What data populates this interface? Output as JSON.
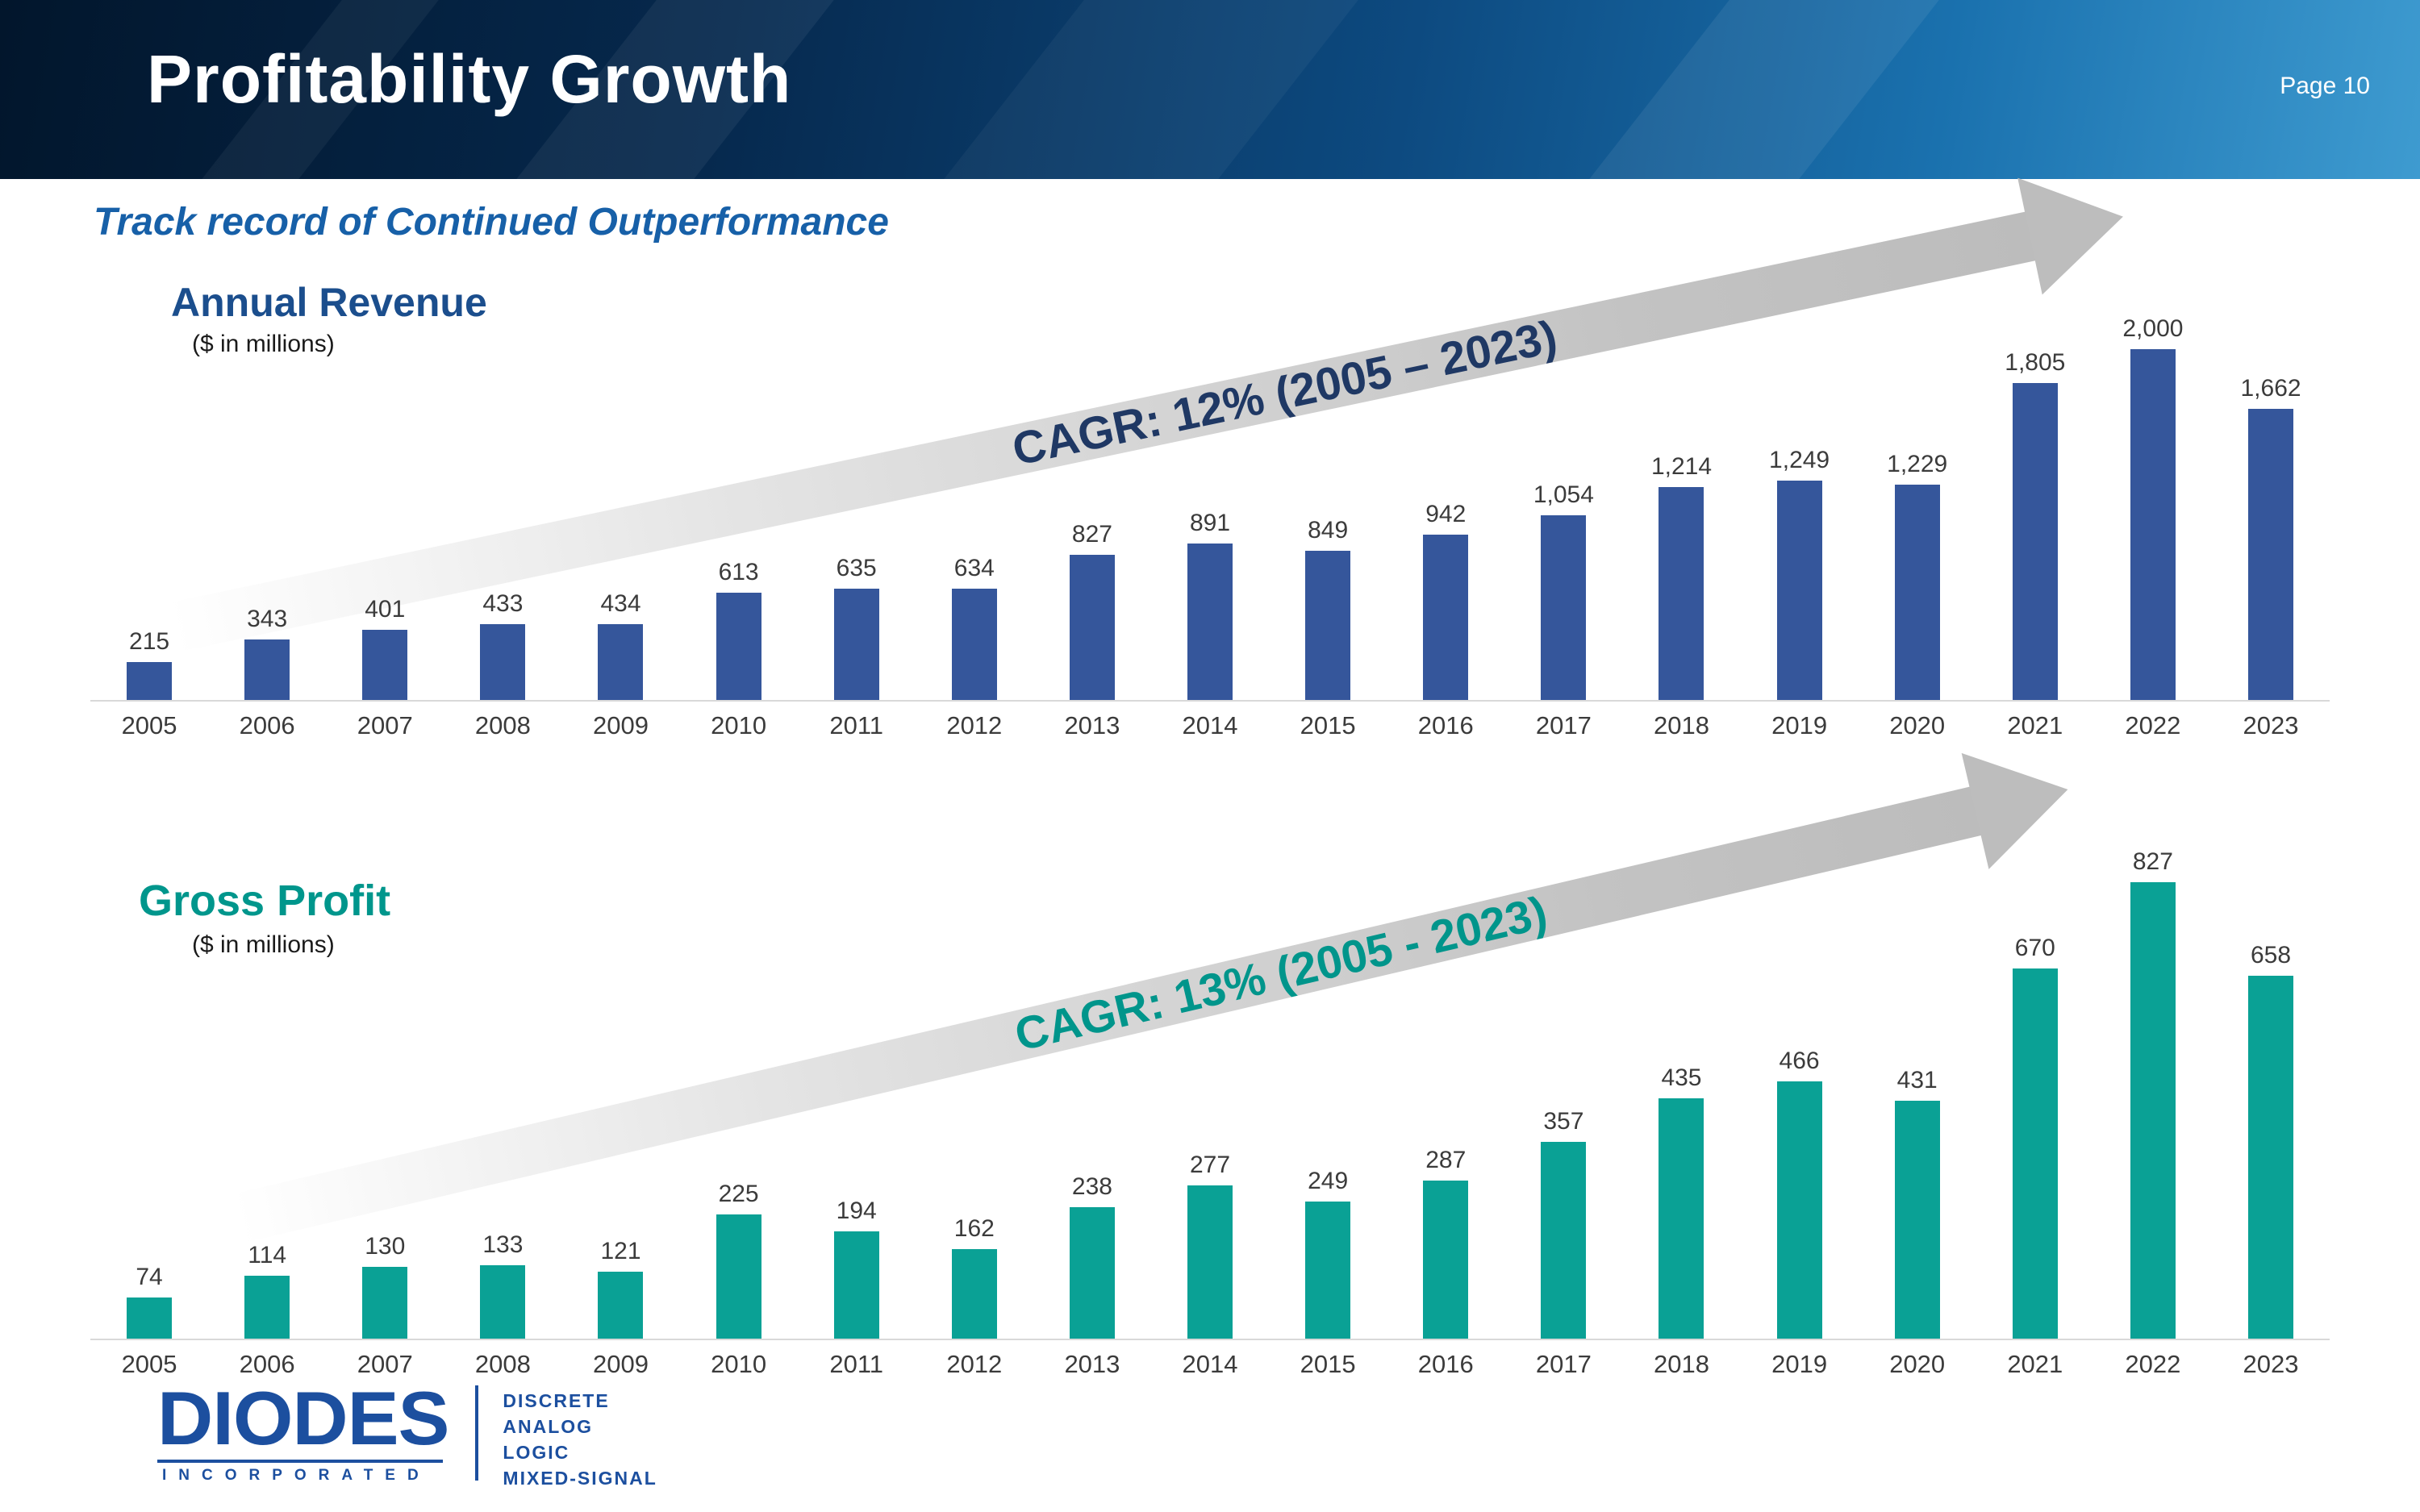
{
  "header": {
    "title": "Profitability Growth",
    "page_label": "Page 10"
  },
  "subtitle": "Track record of Continued Outperformance",
  "chart_data": [
    {
      "type": "bar",
      "title": "Annual Revenue",
      "units_label": "($ in millions)",
      "cagr_label": "CAGR: 12% (2005 – 2023)",
      "categories": [
        "2005",
        "2006",
        "2007",
        "2008",
        "2009",
        "2010",
        "2011",
        "2012",
        "2013",
        "2014",
        "2015",
        "2016",
        "2017",
        "2018",
        "2019",
        "2020",
        "2021",
        "2022",
        "2023"
      ],
      "values": [
        215,
        343,
        401,
        433,
        434,
        613,
        635,
        634,
        827,
        891,
        849,
        942,
        1054,
        1214,
        1249,
        1229,
        1805,
        2000,
        1662
      ],
      "xlabel": "",
      "ylabel": "",
      "ylim": [
        0,
        2000
      ],
      "grid": false,
      "legend": "none",
      "bar_color": "#35569B",
      "title_color": "#1B4E8D",
      "cagr_color": "#1F3864"
    },
    {
      "type": "bar",
      "title": "Gross Profit",
      "units_label": "($ in millions)",
      "cagr_label": "CAGR: 13% (2005 - 2023)",
      "categories": [
        "2005",
        "2006",
        "2007",
        "2008",
        "2009",
        "2010",
        "2011",
        "2012",
        "2013",
        "2014",
        "2015",
        "2016",
        "2017",
        "2018",
        "2019",
        "2020",
        "2021",
        "2022",
        "2023"
      ],
      "values": [
        74,
        114,
        130,
        133,
        121,
        225,
        194,
        162,
        238,
        277,
        249,
        287,
        357,
        435,
        466,
        431,
        670,
        827,
        658
      ],
      "xlabel": "",
      "ylabel": "",
      "ylim": [
        0,
        827
      ],
      "grid": false,
      "legend": "none",
      "bar_color": "#0AA195",
      "title_color": "#00968C",
      "cagr_color": "#00958B"
    }
  ],
  "footer": {
    "logo_text": "DIODES",
    "logo_sub": "INCORPORATED",
    "tagline": [
      "DISCRETE",
      "ANALOG",
      "LOGIC",
      "MIXED-SIGNAL"
    ]
  }
}
